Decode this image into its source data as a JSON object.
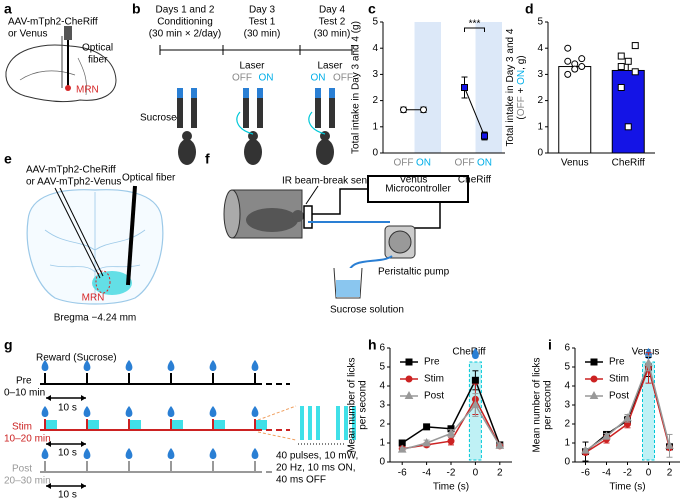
{
  "panel_labels": [
    "a",
    "b",
    "c",
    "d",
    "e",
    "f",
    "g",
    "h",
    "i"
  ],
  "panel_a": {
    "lines": [
      "AAV-mTph2-CheRiff",
      "or Venus"
    ],
    "fiber": [
      "Optical",
      "fiber"
    ],
    "region": "MRN"
  },
  "panel_b": {
    "stages": [
      {
        "lines": [
          "Days 1 and 2",
          "Conditioning",
          "(30 min × 2/day)"
        ]
      },
      {
        "lines": [
          "Day 3",
          "Test 1",
          "(30 min)"
        ]
      },
      {
        "lines": [
          "Day 4",
          "Test 2",
          "(30 min)"
        ]
      }
    ],
    "laser": "Laser",
    "off": "OFF",
    "on": "ON",
    "sucrose": "Sucrose"
  },
  "panel_e": {
    "virus": [
      "AAV-mTph2-CheRiff",
      "or AAV-mTph2-Venus"
    ],
    "fiber": "Optical fiber",
    "region": "MRN",
    "bregma": "Bregma −4.24 mm"
  },
  "panel_f": {
    "sensor": "IR beam-break sensor",
    "controller": "Microcontroller",
    "pump": "Peristaltic pump",
    "solution": "Sucrose solution"
  },
  "panel_g": {
    "reward": "Reward (Sucrose)",
    "rows": [
      {
        "name": "Pre",
        "time": "0–10 min"
      },
      {
        "name": "Stim",
        "time": "10–20 min"
      },
      {
        "name": "Post",
        "time": "20–30 min"
      }
    ],
    "interval": "10 s",
    "pulse": [
      "40 pulses, 10 mW,",
      "20 Hz, 10 ms ON,",
      "40 ms OFF"
    ]
  },
  "chart_data": [
    {
      "type": "paired",
      "ylabel": [
        "Total intake in Day 3 and 4 (g)"
      ],
      "categories": [
        "OFF",
        "ON"
      ],
      "category_colors": [
        "#888888",
        "#00aee8"
      ],
      "highlight_color": "#dce8f8",
      "ylim": [
        0,
        5
      ],
      "yticks": [
        0,
        1,
        2,
        3,
        4,
        5
      ],
      "annotation": "***",
      "series": [
        {
          "name": "Venus",
          "color": "#ffffff",
          "values": [
            1.65,
            1.65
          ],
          "errors": [
            0.1,
            0.1
          ]
        },
        {
          "name": "CheRiff",
          "color": "#1414e6",
          "values": [
            2.5,
            0.65
          ],
          "errors": [
            0.4,
            0.15
          ]
        }
      ]
    },
    {
      "type": "bar",
      "ylabel": [
        [
          {
            "text": "Total intake in Day 3 and 4",
            "color": "#000000"
          }
        ],
        [
          {
            "text": "(",
            "color": "#000000"
          },
          {
            "text": "OFF",
            "color": "#888888"
          },
          {
            "text": " + ",
            "color": "#000000"
          },
          {
            "text": "ON",
            "color": "#00aee8"
          },
          {
            "text": ", g)",
            "color": "#000000"
          }
        ]
      ],
      "categories": [
        "Venus",
        "CheRiff"
      ],
      "values": [
        3.3,
        3.15
      ],
      "errors": [
        0.15,
        0.45
      ],
      "colors": [
        "#ffffff",
        "#1414e6"
      ],
      "markers": [
        "circle",
        "square"
      ],
      "points": [
        [
          3.5,
          3.4,
          3.3,
          3.0,
          3.2,
          3.6,
          4.0
        ],
        [
          3.7,
          3.5,
          3.1,
          2.5,
          1.0,
          4.1,
          3.3
        ]
      ],
      "ylim": [
        0,
        5
      ],
      "yticks": [
        0,
        1,
        2,
        3,
        4,
        5
      ]
    },
    {
      "type": "line",
      "title": "CheRiff",
      "xlabel": "Time (s)",
      "ylabel": [
        "Mean number of licks",
        "per second"
      ],
      "x": [
        -6,
        -4,
        -2,
        0,
        2
      ],
      "xlim": [
        -7,
        3
      ],
      "xticks": [
        -6,
        -4,
        -2,
        0,
        2
      ],
      "ylim": [
        0,
        6
      ],
      "yticks": [
        0,
        1,
        2,
        3,
        4,
        5,
        6
      ],
      "reward_x": 0,
      "highlight_color": "#00c8d8",
      "series": [
        {
          "name": "Pre",
          "color": "#000000",
          "marker": "square",
          "values": [
            1.0,
            1.85,
            1.75,
            4.3,
            0.9
          ],
          "errors": [
            0.1,
            0.1,
            0.1,
            0.5,
            0.1
          ]
        },
        {
          "name": "Stim",
          "color": "#cc2222",
          "marker": "circle",
          "values": [
            0.7,
            0.9,
            1.1,
            3.3,
            0.85
          ],
          "errors": [
            0.1,
            0.1,
            0.2,
            0.8,
            0.1
          ]
        },
        {
          "name": "Post",
          "color": "#999999",
          "marker": "triangle",
          "values": [
            0.65,
            1.0,
            1.5,
            3.0,
            0.85
          ],
          "errors": [
            0.1,
            0.15,
            0.2,
            0.6,
            0.1
          ]
        }
      ]
    },
    {
      "type": "line",
      "title": "Venus",
      "xlabel": "Time (s)",
      "ylabel": [
        "Mean number of licks",
        "per second"
      ],
      "x": [
        -6,
        -4,
        -2,
        0,
        2
      ],
      "xlim": [
        -7,
        3
      ],
      "xticks": [
        -6,
        -4,
        -2,
        0,
        2
      ],
      "ylim": [
        0,
        6
      ],
      "yticks": [
        0,
        1,
        2,
        3,
        4,
        5,
        6
      ],
      "reward_x": 0,
      "highlight_color": "#00c8d8",
      "series": [
        {
          "name": "Pre",
          "color": "#000000",
          "marker": "square",
          "values": [
            0.55,
            1.45,
            2.2,
            5.0,
            0.8
          ],
          "errors": [
            0.5,
            0.15,
            0.2,
            0.5,
            0.1
          ]
        },
        {
          "name": "Stim",
          "color": "#cc2222",
          "marker": "circle",
          "values": [
            0.5,
            1.2,
            2.0,
            4.95,
            0.75
          ],
          "errors": [
            0.1,
            0.2,
            0.2,
            0.8,
            0.1
          ]
        },
        {
          "name": "Post",
          "color": "#999999",
          "marker": "triangle",
          "values": [
            0.6,
            1.35,
            2.3,
            5.2,
            0.85
          ],
          "errors": [
            0.1,
            0.15,
            0.2,
            0.4,
            0.6
          ]
        }
      ]
    }
  ]
}
